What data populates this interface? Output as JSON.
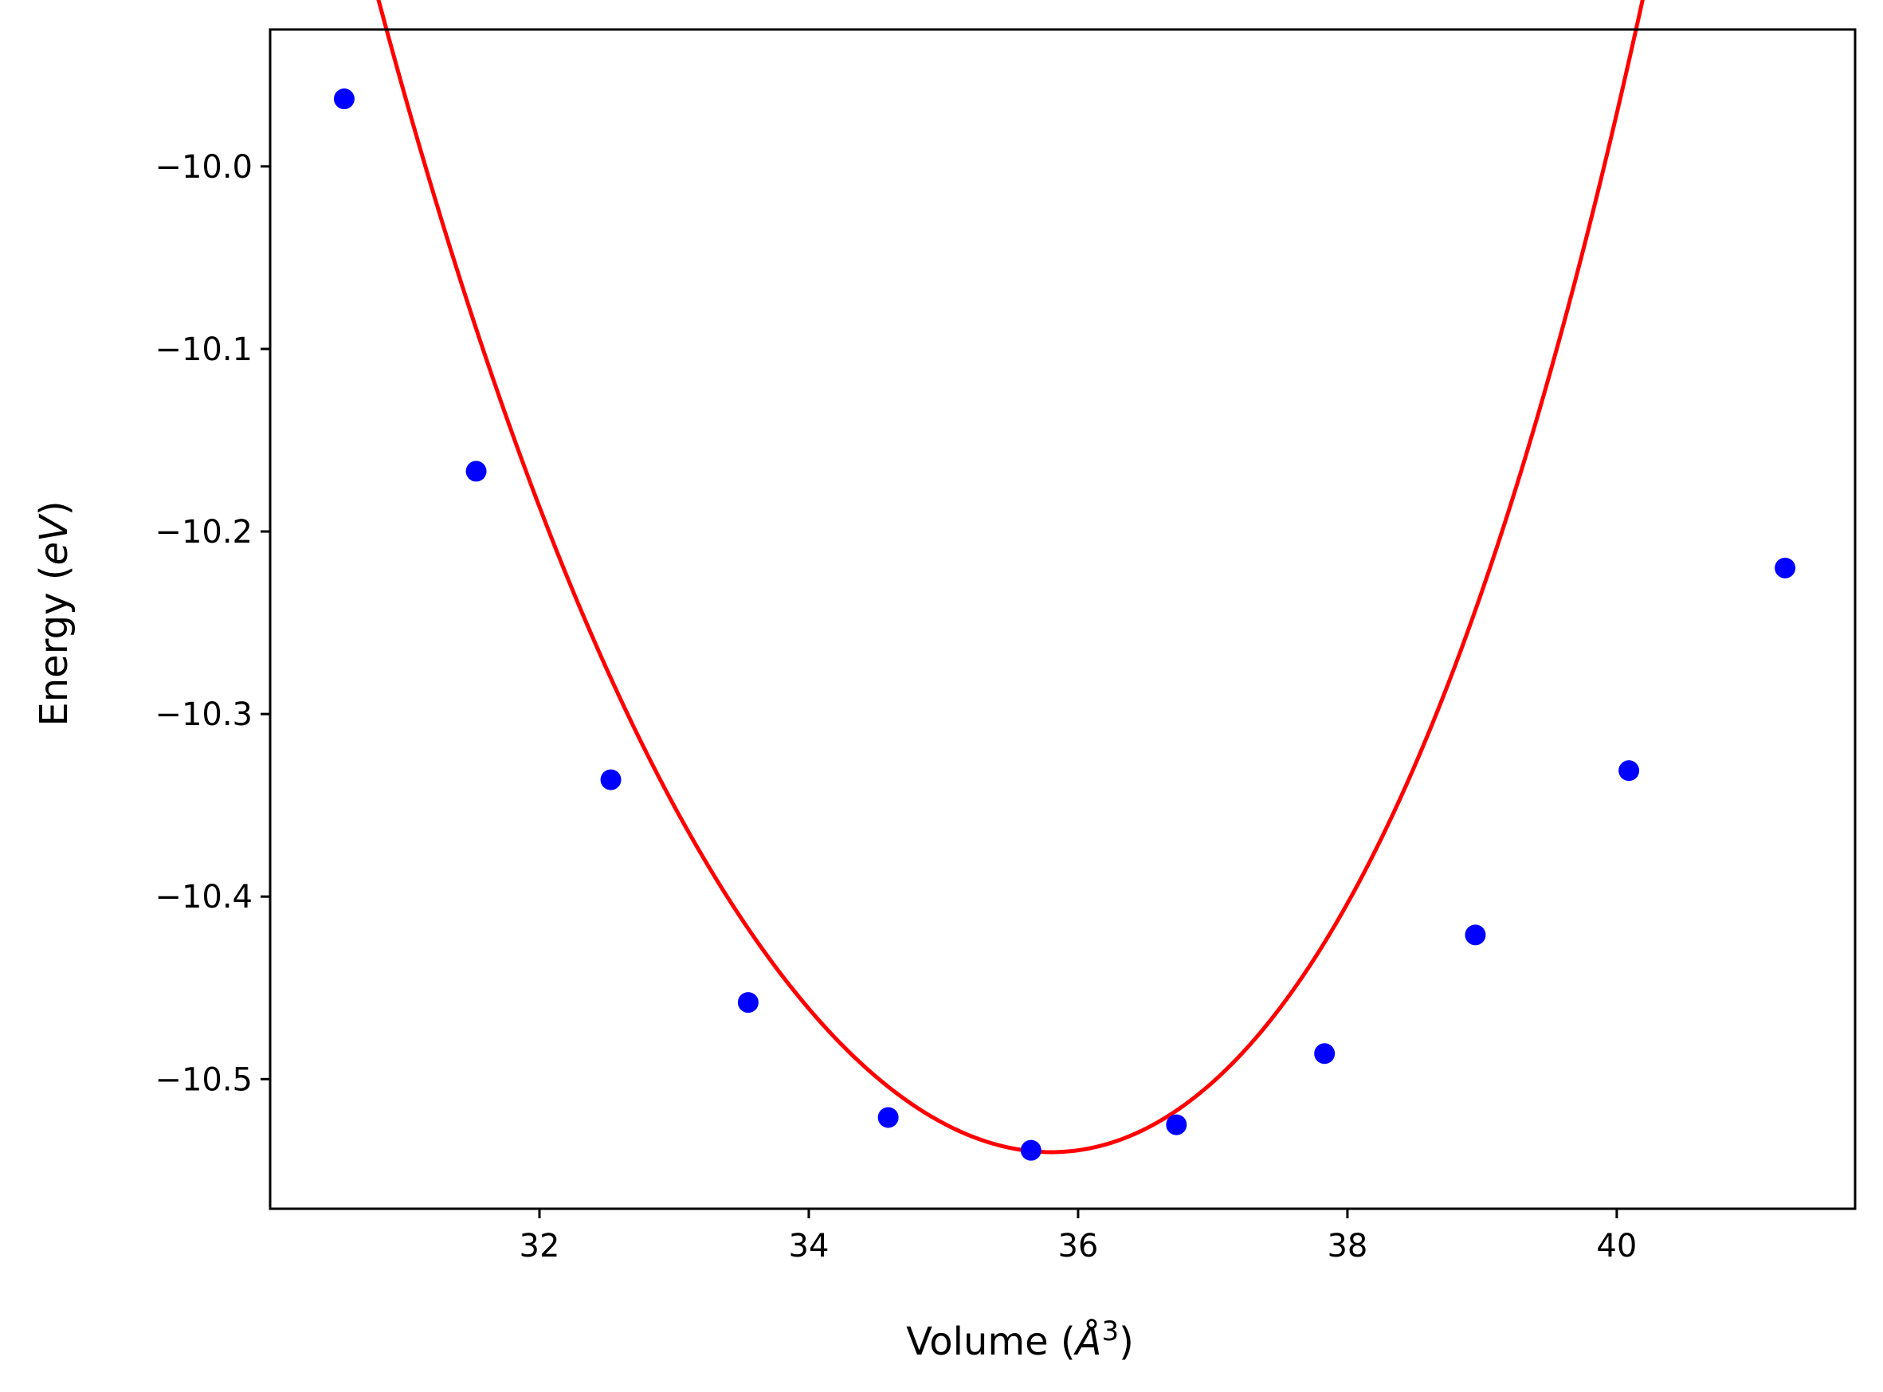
{
  "chart_data": {
    "type": "scatter",
    "xlabel": "Volume (Å³)",
    "xlabel_main": "Volume (",
    "xlabel_unit": "Å",
    "xlabel_exp": "3",
    "xlabel_close": ")",
    "ylabel": "Energy (eV)",
    "ylabel_main": "Energy (",
    "ylabel_unit": "eV",
    "ylabel_close": ")",
    "xlim": [
      30.0,
      41.77
    ],
    "ylim": [
      -10.571,
      -9.925
    ],
    "xticks": [
      32,
      34,
      36,
      38,
      40
    ],
    "xtick_labels": [
      "32",
      "34",
      "36",
      "38",
      "40"
    ],
    "yticks": [
      -10.0,
      -10.1,
      -10.2,
      -10.3,
      -10.4,
      -10.5
    ],
    "ytick_labels": [
      "−10.0",
      "−10.1",
      "−10.2",
      "−10.3",
      "−10.4",
      "−10.5"
    ],
    "grid": false,
    "series": [
      {
        "type": "scatter",
        "color": "#0000ff",
        "x": [
          30.55,
          31.53,
          32.53,
          33.55,
          34.59,
          35.65,
          36.73,
          37.83,
          38.95,
          40.09,
          41.25
        ],
        "y": [
          -9.963,
          -10.167,
          -10.336,
          -10.458,
          -10.521,
          -10.539,
          -10.525,
          -10.486,
          -10.421,
          -10.331,
          -10.22
        ]
      },
      {
        "type": "line",
        "color": "#ff0000",
        "fit": {
          "E0": -10.54,
          "V0": 35.8,
          "coefficients": [
            0.0253,
            0.0009,
            0.00018
          ]
        }
      }
    ]
  }
}
